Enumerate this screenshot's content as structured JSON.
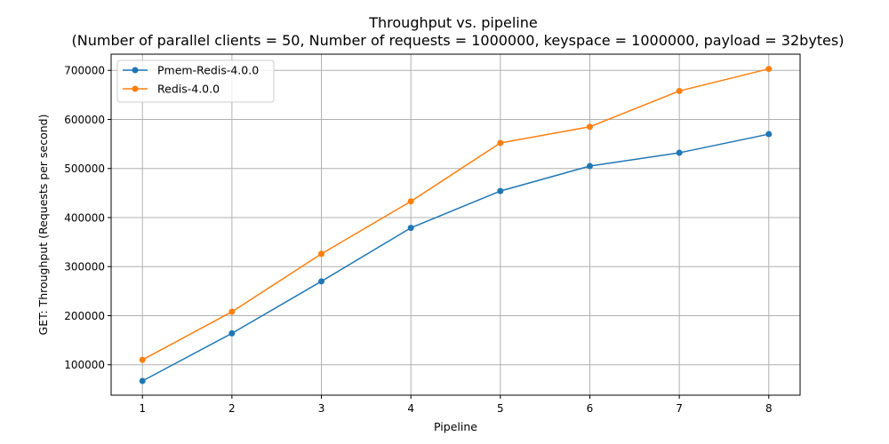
{
  "chart_data": {
    "type": "line",
    "title": "Throughput vs. pipeline",
    "subtitle": "(Number of parallel clients = 50, Number of requests = 1000000, keyspace = 1000000, payload = 32bytes)",
    "xlabel": "Pipeline",
    "ylabel": "GET: Throughput (Requests per second)",
    "x": [
      1,
      2,
      3,
      4,
      5,
      6,
      7,
      8
    ],
    "xlim": [
      0.65,
      8.35
    ],
    "ylim": [
      38000,
      733000
    ],
    "xticks": [
      1,
      2,
      3,
      4,
      5,
      6,
      7,
      8
    ],
    "yticks": [
      100000,
      200000,
      300000,
      400000,
      500000,
      600000,
      700000
    ],
    "grid": true,
    "legend_position": "top-left",
    "series": [
      {
        "name": "Pmem-Redis-4.0.0",
        "color": "#1f77b4",
        "values": [
          67000,
          164000,
          270000,
          379000,
          454000,
          505000,
          532000,
          570000
        ]
      },
      {
        "name": "Redis-4.0.0",
        "color": "#ff7f0e",
        "values": [
          110000,
          208000,
          326000,
          433000,
          552000,
          585000,
          658000,
          703000
        ]
      }
    ]
  }
}
